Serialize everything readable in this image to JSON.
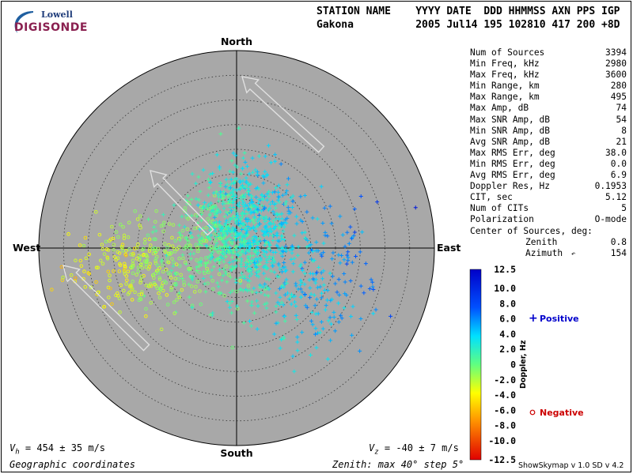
{
  "logo": {
    "top_text": "Lowell",
    "bottom_text": "DIGISONDE"
  },
  "header": {
    "col_labels": "STATION NAME    YYYY DATE  DDD HHMMSS AXN PPS IGP",
    "row_values": "Gakona          2005 Jul14 195 102810 417 200 +8D"
  },
  "stats": [
    {
      "label": "Num of Sources",
      "value": "3394"
    },
    {
      "label": "Min Freq, kHz",
      "value": "2980"
    },
    {
      "label": "Max Freq, kHz",
      "value": "3600"
    },
    {
      "label": "Min Range, km",
      "value": "280"
    },
    {
      "label": "Max Range, km",
      "value": "495"
    },
    {
      "label": "Max Amp, dB",
      "value": "74"
    },
    {
      "label": "Max SNR Amp, dB",
      "value": "54"
    },
    {
      "label": "Min SNR Amp, dB",
      "value": "8"
    },
    {
      "label": "Avg SNR Amp, dB",
      "value": "21"
    },
    {
      "label": "Max RMS Err, deg",
      "value": "38.0"
    },
    {
      "label": "Min RMS Err, deg",
      "value": "0.0"
    },
    {
      "label": "Avg RMS Err, deg",
      "value": "6.9"
    },
    {
      "label": "Doppler Res, Hz",
      "value": "0.1953"
    },
    {
      "label": "CIT, sec",
      "value": "5.12"
    },
    {
      "label": "Num of CITs",
      "value": "5"
    },
    {
      "label": "Polarization",
      "value": "O-mode"
    }
  ],
  "center_of_sources": {
    "title": "Center of Sources, deg:",
    "zenith_label": "Zenith",
    "zenith_value": "0.8",
    "azimuth_label": "Azimuth",
    "azimuth_value": "154"
  },
  "footer": {
    "vh_text": "= 454 ± 35 m/s",
    "vz_text": "= -40 ± 7 m/s",
    "coords": "Geographic coordinates",
    "zenith_info": "Zenith: max 40°  step 5°",
    "version": "ShowSkymap v 1.0   SD v 4.2"
  },
  "colors": {
    "plot_bg": "#a8a8a8",
    "positive": "#0000cc",
    "negative": "#cc0000"
  },
  "chart_data": {
    "type": "scatter",
    "coordinate_system": "polar skymap",
    "directions": {
      "north": "North",
      "south": "South",
      "east": "East",
      "west": "West"
    },
    "zenith_max_deg": 40,
    "zenith_ring_step_deg": 5,
    "colorbar": {
      "title": "Doppler, Hz",
      "ticks": [
        "12.5",
        "10.0",
        "8.0",
        "6.0",
        "4.0",
        "2.0",
        "0",
        "-2.0",
        "-4.0",
        "-6.0",
        "-8.0",
        "-10.0",
        "-12.5"
      ],
      "range": [
        -12.5,
        12.5
      ]
    },
    "legend": [
      {
        "label": "Positive",
        "marker": "+",
        "color": "#0000cc"
      },
      {
        "label": "Negative",
        "marker": "o",
        "color": "#cc0000"
      }
    ],
    "num_sources": 3394,
    "velocity_arrows": 3
  }
}
